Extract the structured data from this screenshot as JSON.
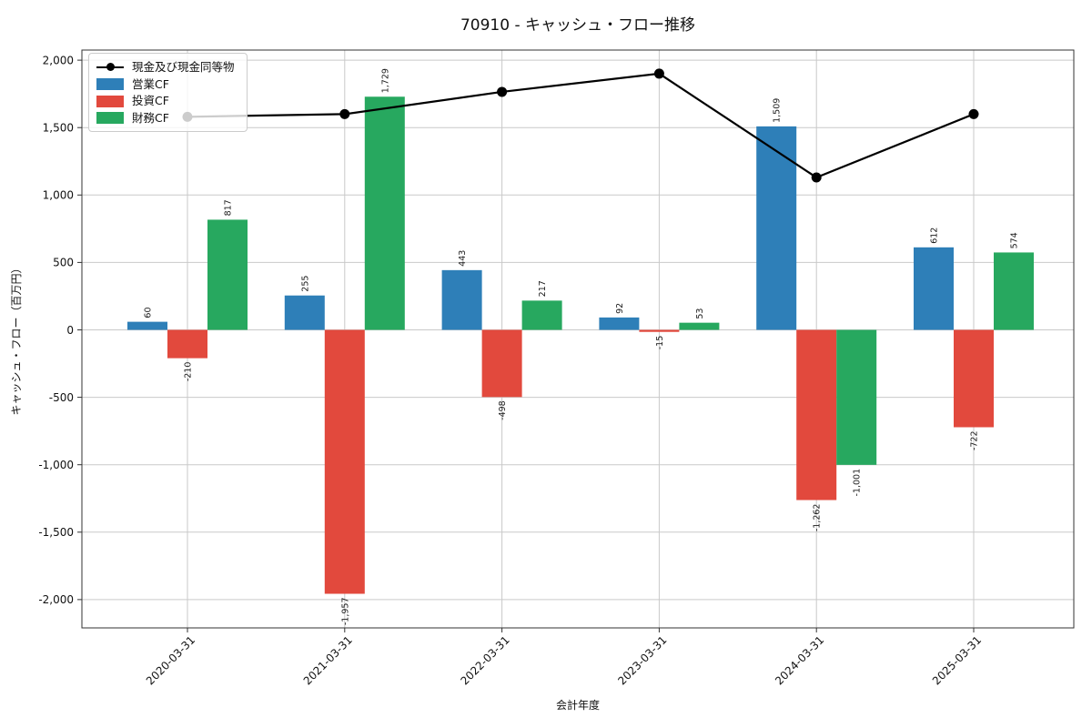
{
  "chart_data": {
    "type": "bar",
    "subtype": "grouped-bars-with-line-overlay",
    "title": "70910 - キャッシュ・フロー推移",
    "xlabel": "会計年度",
    "ylabel": "キャッシュ・フロー（百万円）",
    "categories": [
      "2020-03-31",
      "2021-03-31",
      "2022-03-31",
      "2023-03-31",
      "2024-03-31",
      "2025-03-31"
    ],
    "bar_series": [
      {
        "name": "営業CF",
        "color": "#2e7fb8",
        "values": [
          60,
          255,
          443,
          92,
          1509,
          612
        ]
      },
      {
        "name": "投資CF",
        "color": "#e2493d",
        "values": [
          -210,
          -1957,
          -498,
          -15,
          -1262,
          -722
        ]
      },
      {
        "name": "財務CF",
        "color": "#27a85f",
        "values": [
          817,
          1729,
          217,
          53,
          -1001,
          574
        ]
      }
    ],
    "line_series": {
      "name": "現金及び現金同等物",
      "color": "#000000",
      "values": [
        1580,
        1600,
        1765,
        1900,
        1130,
        1600
      ]
    },
    "yticks": [
      -2000,
      -1500,
      -1000,
      -500,
      0,
      500,
      1000,
      1500,
      2000
    ],
    "ylim": [
      -2210,
      2075
    ],
    "grid": true,
    "grid_color": "#c9c9c9",
    "spine_color": "#333333",
    "legend": {
      "position": "upper-left",
      "items": [
        "現金及び現金同等物",
        "営業CF",
        "投資CF",
        "財務CF"
      ]
    }
  }
}
